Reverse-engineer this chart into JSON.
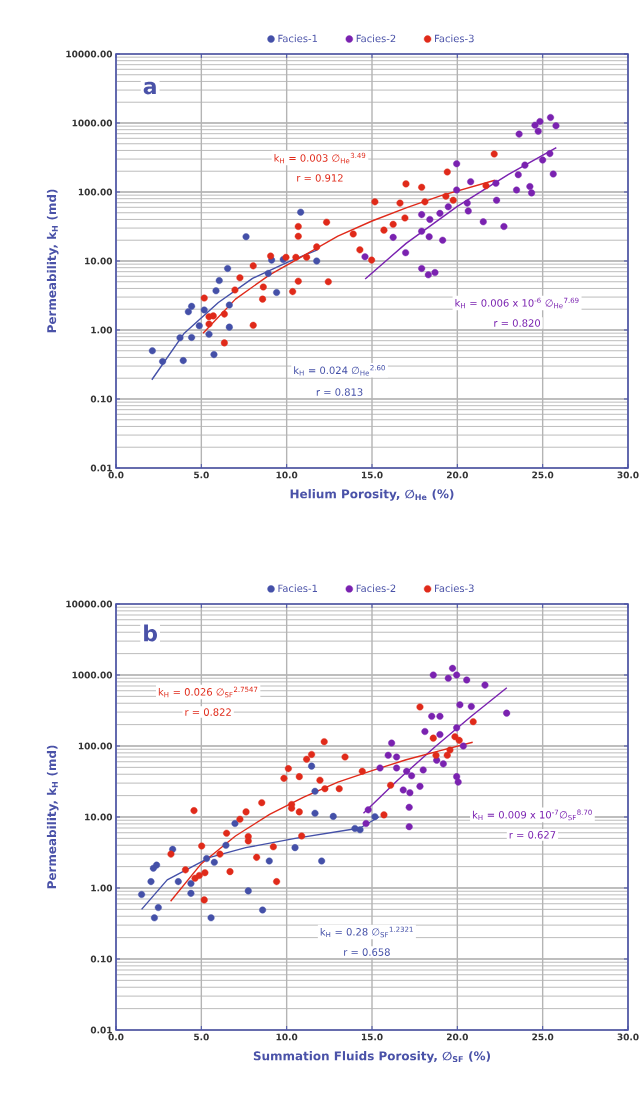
{
  "chart_data": [
    {
      "type": "scatter",
      "xlabel": "Helium Porosity, ∅$_{He}$ (%)",
      "ylabel": "Permeability, k$_{H}$ (md)",
      "legend": "top",
      "log": "y",
      "grid": true,
      "marker": "circle",
      "xlim": [
        0,
        30
      ],
      "ylim": [
        0.01,
        10000
      ],
      "xticks": [
        {
          "value": 0,
          "label": "0.0"
        },
        {
          "value": 5,
          "label": "5.0"
        },
        {
          "value": 10,
          "label": "10.0"
        },
        {
          "value": 15,
          "label": "15.0"
        },
        {
          "value": 20,
          "label": "20.0"
        },
        {
          "value": 25,
          "label": "25.0"
        },
        {
          "value": 30,
          "label": "30.0"
        }
      ],
      "yticks": [
        {
          "value": 0.01,
          "label": "0.01"
        },
        {
          "value": 0.1,
          "label": "0.10"
        },
        {
          "value": 1,
          "label": "1.00"
        },
        {
          "value": 10,
          "label": "10.00"
        },
        {
          "value": 100,
          "label": "100.00"
        },
        {
          "value": 1000,
          "label": "1000.00"
        },
        {
          "value": 10000,
          "label": "10000.00"
        }
      ],
      "annotations": [
        "a",
        "k$_{H}$ = 0.003 ∅$_{He}$$^{3.49}$",
        "r = 0.912",
        "k$_{H}$ = 0.006 x 10$^{-6}$ ∅$_{He}$$^{7.69}$",
        "r = 0.820",
        "k$_{H}$ = 0.024 ∅$_{He}$$^{2.60}$",
        "r = 0.813"
      ],
      "series": [
        {
          "name": "Facies-1",
          "color": "#4450a8",
          "x": [
            2.13,
            2.73,
            3.94,
            3.75,
            4.43,
            4.24,
            4.43,
            4.88,
            5.17,
            5.45,
            5.74,
            5.86,
            6.05,
            6.54,
            6.64,
            6.64,
            7.62,
            8.92,
            9.41,
            9.12,
            9.8,
            10.82,
            11.76
          ],
          "values": [
            0.5,
            0.35,
            0.36,
            0.77,
            0.78,
            1.84,
            2.2,
            1.15,
            1.95,
            0.87,
            0.44,
            3.7,
            5.2,
            7.8,
            1.1,
            2.3,
            22.5,
            6.6,
            3.5,
            10.3,
            10.5,
            51,
            10
          ]
        },
        {
          "name": "Facies-2",
          "color": "#7a22b0",
          "x": [
            14.59,
            16.24,
            16.97,
            17.91,
            18.3,
            18.69,
            17.91,
            17.91,
            18.39,
            18.35,
            18.98,
            19.14,
            19.47,
            19.96,
            19.96,
            20.58,
            20.64,
            20.78,
            21.52,
            22.3,
            22.26,
            22.73,
            23.47,
            23.57,
            23.62,
            23.96,
            24.25,
            24.35,
            24.55,
            24.84,
            24.74,
            25.0,
            25.42,
            25.46,
            25.78,
            25.62
          ],
          "values": [
            11.5,
            22,
            13.2,
            7.8,
            6.3,
            6.8,
            27,
            47,
            40,
            22.5,
            49,
            20,
            61,
            257,
            107,
            69,
            53,
            141,
            37,
            76,
            134,
            31.6,
            107,
            178,
            690,
            245,
            120,
            97,
            930,
            1050,
            760,
            290,
            360,
            1200,
            910,
            182
          ]
        },
        {
          "name": "Facies-3",
          "color": "#e02a1a",
          "x": [
            5.17,
            5.45,
            5.7,
            5.45,
            6.35,
            6.35,
            6.97,
            7.26,
            8.04,
            8.04,
            8.59,
            8.63,
            9.06,
            9.96,
            10.35,
            10.68,
            10.68,
            10.68,
            10.54,
            11.17,
            12.34,
            12.44,
            11.76,
            13.9,
            14.29,
            14.98,
            15.17,
            15.7,
            16.24,
            16.64,
            16.93,
            16.99,
            17.91,
            18.1,
            19.41,
            19.33,
            19.76,
            21.68,
            22.16
          ],
          "values": [
            2.9,
            1.56,
            1.6,
            1.22,
            1.7,
            0.65,
            3.8,
            5.7,
            8.5,
            1.17,
            2.8,
            4.2,
            11.8,
            11.3,
            3.6,
            5.1,
            31.6,
            22.8,
            11.3,
            11.3,
            36.5,
            5.0,
            16,
            24.6,
            14.5,
            10.3,
            72,
            28,
            34,
            69,
            42,
            131,
            117,
            72,
            195,
            87,
            76,
            123,
            355
          ]
        },
        {
          "type": "line",
          "color": "#4450a8",
          "marker": "none",
          "line_style": "solid",
          "x": [
            2.1,
            4,
            6,
            8,
            10,
            11.8
          ],
          "values": [
            0.19,
            0.9,
            2.5,
            5.6,
            9.5,
            14.5
          ]
        },
        {
          "type": "line",
          "color": "#7a22b0",
          "marker": "none",
          "line_style": "solid",
          "x": [
            14.6,
            17,
            20,
            23,
            25.8
          ],
          "values": [
            5.5,
            18,
            62,
            180,
            440
          ]
        },
        {
          "type": "line",
          "color": "#e02a1a",
          "marker": "none",
          "line_style": "solid",
          "x": [
            5.1,
            7,
            9,
            11,
            13,
            15,
            17,
            19,
            22.2
          ],
          "values": [
            0.9,
            2.8,
            6.3,
            12,
            23,
            38,
            59,
            88,
            148
          ]
        }
      ]
    },
    {
      "type": "scatter",
      "xlabel": "Summation Fluids Porosity, ∅$_{SF}$ (%)",
      "ylabel": "Permeability, k$_{H}$ (md)",
      "legend": "top",
      "log": "y",
      "grid": true,
      "marker": "circle",
      "xlim": [
        0,
        30
      ],
      "ylim": [
        0.01,
        10000
      ],
      "xticks": [
        {
          "value": 0,
          "label": "0.0"
        },
        {
          "value": 5,
          "label": "5.0"
        },
        {
          "value": 10,
          "label": "10.0"
        },
        {
          "value": 15,
          "label": "15.0"
        },
        {
          "value": 20,
          "label": "20.0"
        },
        {
          "value": 25,
          "label": "25.0"
        },
        {
          "value": 30,
          "label": "30.0"
        }
      ],
      "yticks": [
        {
          "value": 0.01,
          "label": "0.01"
        },
        {
          "value": 0.1,
          "label": "0.10"
        },
        {
          "value": 1,
          "label": "1.00"
        },
        {
          "value": 10,
          "label": "10.00"
        },
        {
          "value": 100,
          "label": "100.00"
        },
        {
          "value": 1000,
          "label": "1000.00"
        },
        {
          "value": 10000,
          "label": "10000.00"
        }
      ],
      "annotations": [
        "b",
        "k$_{H}$ = 0.026 ∅$_{SF}$$^{2.7547}$",
        "r = 0.822",
        "k$_{H}$ = 0.009 x 10$^{-7}$∅$_{SF}$$^{8.70}$",
        "r = 0.627",
        "k$_{H}$ = 0.28 ∅$_{SF}$$^{1.2321}$",
        "r = 0.658"
      ],
      "series": [
        {
          "name": "Facies-1",
          "color": "#4450a8",
          "x": [
            1.5,
            2.25,
            2.48,
            2.05,
            2.19,
            2.38,
            3.32,
            3.65,
            4.39,
            4.39,
            5.31,
            5.76,
            5.57,
            6.44,
            6.97,
            7.75,
            8.59,
            8.98,
            10.49,
            11.46,
            11.66,
            11.66,
            12.73,
            12.05,
            14.0,
            14.3,
            15.17
          ],
          "values": [
            0.81,
            0.38,
            0.53,
            1.23,
            1.9,
            2.1,
            3.5,
            1.23,
            0.84,
            1.16,
            2.6,
            2.3,
            0.38,
            4.0,
            8.1,
            0.91,
            0.49,
            2.4,
            3.7,
            52,
            23,
            11.3,
            10.2,
            2.4,
            6.9,
            6.6,
            10.1
          ]
        },
        {
          "name": "Facies-2",
          "color": "#7a22b0",
          "x": [
            14.78,
            17.18,
            17.18,
            14.65,
            16.15,
            15.95,
            16.44,
            15.47,
            16.44,
            17.03,
            17.32,
            18.0,
            16.83,
            17.22,
            17.81,
            18.1,
            18.5,
            18.98,
            18.59,
            19.47,
            19.72,
            19.96,
            20.55,
            21.62,
            20.15,
            20.82,
            19.96,
            18.98,
            18.79,
            19.18,
            19.96,
            20.05,
            20.35,
            22.89
          ],
          "values": [
            12.6,
            13.7,
            7.3,
            8.1,
            110,
            74,
            70,
            49,
            49,
            44,
            38,
            46,
            24,
            22,
            27,
            160,
            262,
            262,
            1000,
            900,
            1240,
            1000,
            850,
            720,
            380,
            360,
            180,
            145,
            63,
            56,
            37,
            31,
            100,
            290
          ]
        },
        {
          "name": "Facies-3",
          "color": "#e02a1a",
          "x": [
            3.22,
            4.07,
            4.57,
            4.63,
            5.02,
            4.88,
            5.21,
            5.17,
            6.09,
            6.48,
            6.68,
            7.26,
            7.62,
            7.75,
            7.75,
            8.24,
            8.54,
            9.22,
            9.41,
            9.84,
            10.1,
            10.29,
            10.29,
            10.74,
            10.88,
            10.74,
            11.17,
            11.46,
            12.2,
            11.95,
            12.24,
            13.08,
            13.42,
            14.43,
            16.09,
            15.7,
            17.81,
            18.59,
            18.75,
            19.41,
            19.57,
            19.86,
            20.11,
            20.93
          ],
          "values": [
            3.0,
            1.8,
            12.3,
            1.37,
            3.9,
            1.5,
            1.64,
            0.68,
            3.0,
            5.9,
            1.7,
            9.3,
            11.8,
            5.3,
            4.6,
            2.7,
            15.9,
            3.8,
            1.23,
            35,
            48,
            13.3,
            15,
            11.8,
            5.4,
            37,
            65,
            76,
            115,
            33,
            25,
            25,
            70,
            44,
            28,
            10.7,
            355,
            129,
            74,
            74,
            88,
            135,
            120,
            220
          ]
        },
        {
          "type": "line",
          "color": "#4450a8",
          "marker": "none",
          "line_style": "solid",
          "x": [
            1.5,
            3,
            5.5,
            7.6,
            10.5,
            14.3,
            15.4
          ],
          "values": [
            0.5,
            1.3,
            2.7,
            3.7,
            5.0,
            7.0,
            10
          ]
        },
        {
          "type": "line",
          "color": "#7a22b0",
          "marker": "none",
          "line_style": "solid",
          "x": [
            14.5,
            16.5,
            18.75,
            20.8,
            22.9
          ],
          "values": [
            11.3,
            33,
            100,
            260,
            660
          ]
        },
        {
          "type": "line",
          "color": "#e02a1a",
          "marker": "none",
          "line_style": "solid",
          "x": [
            3.2,
            5,
            7,
            9,
            11,
            13,
            15,
            17,
            19,
            20.9
          ],
          "values": [
            0.65,
            2.2,
            5.4,
            10.9,
            19,
            31,
            45,
            64,
            86,
            113
          ]
        }
      ]
    }
  ]
}
